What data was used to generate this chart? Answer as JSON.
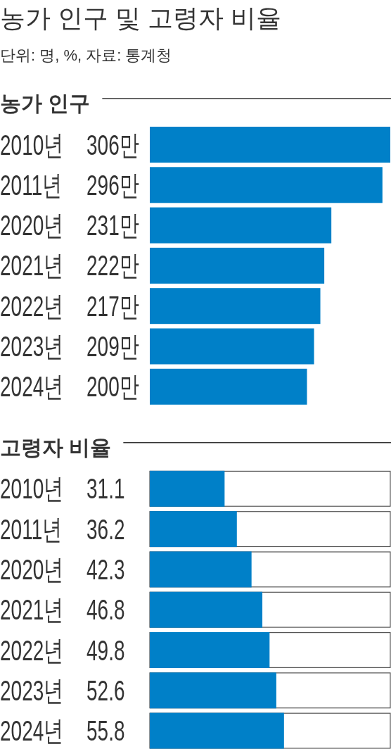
{
  "chart_data": [
    {
      "type": "other",
      "title": "농가 인구 및 고령자 비율",
      "subtitle": "단위: 명, %, 자료: 통계청"
    },
    {
      "type": "bar",
      "orientation": "horizontal",
      "title": "농가 인구",
      "categories": [
        "2010년",
        "2011년",
        "2020년",
        "2021년",
        "2022년",
        "2023년",
        "2024년"
      ],
      "values": [
        306,
        296,
        231,
        222,
        217,
        209,
        200
      ],
      "value_labels": [
        "306만",
        "296만",
        "231만",
        "222만",
        "217만",
        "209만",
        "200만"
      ],
      "color": "#0080c8"
    },
    {
      "type": "bar",
      "orientation": "horizontal",
      "title": "고령자 비율",
      "categories": [
        "2010년",
        "2011년",
        "2020년",
        "2021년",
        "2022년",
        "2023년",
        "2024년"
      ],
      "values": [
        31.1,
        36.2,
        42.3,
        46.8,
        49.8,
        52.6,
        55.8
      ],
      "data_labels": true,
      "color": "#0080c8",
      "xlim": [
        0,
        100
      ]
    }
  ]
}
